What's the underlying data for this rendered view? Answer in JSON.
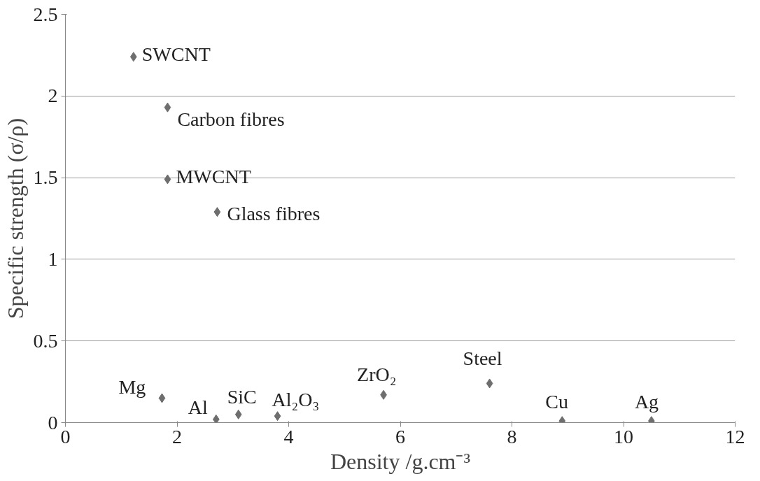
{
  "chart_data": {
    "type": "scatter",
    "xlabel": "Density /g.cm⁻³",
    "ylabel": "Specific strength (σ/ρ)",
    "series": [
      {
        "color": "#6e6e6e",
        "x": [
          1.22,
          1.83,
          1.83,
          2.72,
          1.73,
          2.7,
          3.1,
          3.8,
          5.7,
          7.6,
          8.9,
          10.5
        ],
        "values": [
          2.24,
          1.93,
          1.49,
          1.29,
          0.15,
          0.02,
          0.05,
          0.04,
          0.17,
          0.24,
          0.01,
          0.01
        ]
      }
    ],
    "annotations": [
      {
        "text": "SWCNT",
        "x": 1.22,
        "y": 2.24
      },
      {
        "text": "Carbon fibres",
        "x": 1.83,
        "y": 1.93
      },
      {
        "text": "MWCNT",
        "x": 1.83,
        "y": 1.49
      },
      {
        "text": "Glass fibres",
        "x": 2.72,
        "y": 1.29
      },
      {
        "text": "Mg",
        "x": 1.73,
        "y": 0.15
      },
      {
        "text": "Al",
        "x": 2.7,
        "y": 0.02
      },
      {
        "text": "SiC",
        "x": 3.1,
        "y": 0.05
      },
      {
        "text": "Al₂O₃",
        "x": 3.8,
        "y": 0.04
      },
      {
        "text": "ZrO₂",
        "x": 5.7,
        "y": 0.17
      },
      {
        "text": "Steel",
        "x": 7.6,
        "y": 0.24
      },
      {
        "text": "Cu",
        "x": 8.9,
        "y": 0.01
      },
      {
        "text": "Ag",
        "x": 10.5,
        "y": 0.01
      }
    ],
    "xlim": [
      0,
      12
    ],
    "ylim": [
      0,
      2.5
    ],
    "xticks": [
      0,
      2,
      4,
      6,
      8,
      10,
      12
    ],
    "yticks": [
      0,
      0.5,
      1,
      1.5,
      2,
      2.5
    ],
    "grid": "y",
    "marker": "diamond"
  }
}
